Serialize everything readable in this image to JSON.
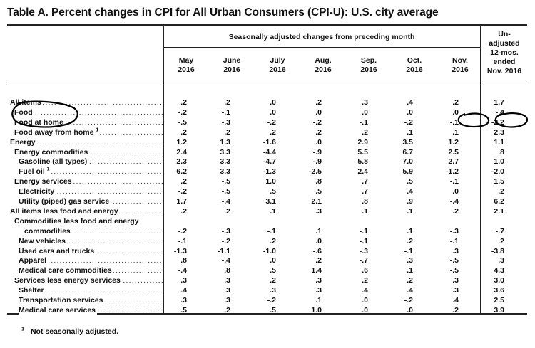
{
  "table": {
    "title": "Table A. Percent changes in CPI for All Urban Consumers (CPI-U): U.S. city average",
    "group_header": "Seasonally adjusted changes from preceding month",
    "unadjusted_header": [
      "Un-",
      "adjusted",
      "12-mos.",
      "ended",
      "Nov. 2016"
    ],
    "columns": [
      {
        "month": "May",
        "year": "2016"
      },
      {
        "month": "June",
        "year": "2016"
      },
      {
        "month": "July",
        "year": "2016"
      },
      {
        "month": "Aug.",
        "year": "2016"
      },
      {
        "month": "Sep.",
        "year": "2016"
      },
      {
        "month": "Oct.",
        "year": "2016"
      },
      {
        "month": "Nov.",
        "year": "2016"
      }
    ],
    "rows": [
      {
        "label": "All items",
        "indent": 0,
        "values": [
          ".2",
          ".2",
          ".0",
          ".2",
          ".3",
          ".4",
          ".2",
          "1.7"
        ]
      },
      {
        "label": "Food",
        "indent": 1,
        "values": [
          "-.2",
          "-.1",
          ".0",
          ".0",
          ".0",
          ".0",
          ".0",
          "-.4"
        ]
      },
      {
        "label": "Food at home",
        "indent": 1,
        "values": [
          "-.5",
          "-.3",
          "-.2",
          "-.2",
          "-.1",
          "-.2",
          "-.1",
          "-2.2"
        ]
      },
      {
        "label": "Food away from home",
        "sup": "1",
        "indent": 1,
        "values": [
          ".2",
          ".2",
          ".2",
          ".2",
          ".2",
          ".1",
          ".1",
          "2.3"
        ]
      },
      {
        "label": "Energy",
        "indent": 0,
        "values": [
          "1.2",
          "1.3",
          "-1.6",
          ".0",
          "2.9",
          "3.5",
          "1.2",
          "1.1"
        ]
      },
      {
        "label": "Energy commodities",
        "indent": 1,
        "values": [
          "2.4",
          "3.3",
          "-4.4",
          "-.9",
          "5.5",
          "6.7",
          "2.5",
          ".8"
        ]
      },
      {
        "label": "Gasoline (all types)",
        "indent": 2,
        "values": [
          "2.3",
          "3.3",
          "-4.7",
          "-.9",
          "5.8",
          "7.0",
          "2.7",
          "1.0"
        ]
      },
      {
        "label": "Fuel oil",
        "sup": "1",
        "indent": 2,
        "values": [
          "6.2",
          "3.3",
          "-1.3",
          "-2.5",
          "2.4",
          "5.9",
          "-1.2",
          "-2.0"
        ]
      },
      {
        "label": "Energy services",
        "indent": 1,
        "values": [
          ".2",
          "-.5",
          "1.0",
          ".8",
          ".7",
          ".5",
          "-.1",
          "1.5"
        ]
      },
      {
        "label": "Electricity",
        "indent": 2,
        "values": [
          "-.2",
          "-.5",
          ".5",
          ".5",
          ".7",
          ".4",
          ".0",
          ".2"
        ]
      },
      {
        "label": "Utility (piped) gas service",
        "indent": 2,
        "values": [
          "1.7",
          "-.4",
          "3.1",
          "2.1",
          ".8",
          ".9",
          "-.4",
          "6.2"
        ]
      },
      {
        "label": "All items less food and energy",
        "indent": 0,
        "values": [
          ".2",
          ".2",
          ".1",
          ".3",
          ".1",
          ".1",
          ".2",
          "2.1"
        ]
      },
      {
        "label": "Commodities less food and energy",
        "indent": 1,
        "values": [
          "",
          "",
          "",
          "",
          "",
          "",
          "",
          ""
        ]
      },
      {
        "label": "commodities",
        "indent": 3,
        "values": [
          "-.2",
          "-.3",
          "-.1",
          ".1",
          "-.1",
          ".1",
          "-.3",
          "-.7"
        ]
      },
      {
        "label": "New vehicles",
        "indent": 2,
        "values": [
          "-.1",
          "-.2",
          ".2",
          ".0",
          "-.1",
          ".2",
          "-.1",
          ".2"
        ]
      },
      {
        "label": "Used cars and trucks",
        "indent": 2,
        "values": [
          "-1.3",
          "-1.1",
          "-1.0",
          "-.6",
          "-.3",
          "-.1",
          ".3",
          "-3.8"
        ]
      },
      {
        "label": "Apparel",
        "indent": 2,
        "values": [
          ".8",
          "-.4",
          ".0",
          ".2",
          "-.7",
          ".3",
          "-.5",
          ".3"
        ]
      },
      {
        "label": "Medical care commodities",
        "indent": 2,
        "values": [
          "-.4",
          ".8",
          ".5",
          "1.4",
          ".6",
          ".1",
          "-.5",
          "4.3"
        ]
      },
      {
        "label": "Services less energy services",
        "indent": 1,
        "values": [
          ".3",
          ".3",
          ".2",
          ".3",
          ".2",
          ".2",
          ".3",
          "3.0"
        ]
      },
      {
        "label": "Shelter",
        "indent": 2,
        "values": [
          ".4",
          ".3",
          ".3",
          ".3",
          ".4",
          ".4",
          ".3",
          "3.6"
        ]
      },
      {
        "label": "Transportation services",
        "indent": 2,
        "values": [
          ".3",
          ".3",
          "-.2",
          ".1",
          ".0",
          "-.2",
          ".4",
          "2.5"
        ]
      },
      {
        "label": "Medical care services",
        "indent": 2,
        "values": [
          ".5",
          ".2",
          ".5",
          "1.0",
          ".0",
          ".0",
          ".2",
          "3.9"
        ]
      }
    ],
    "footnote_marker": "1",
    "footnote_text": "Not seasonally adjusted."
  }
}
